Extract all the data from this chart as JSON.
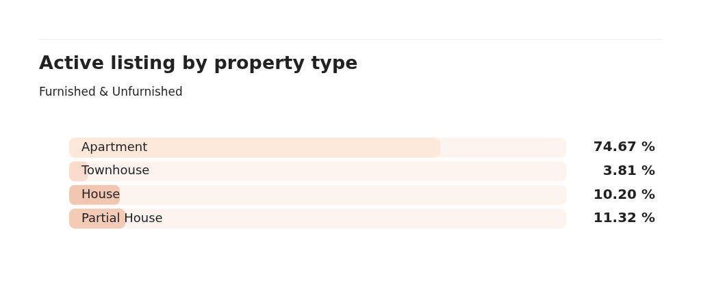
{
  "chart_data": {
    "type": "bar",
    "orientation": "horizontal",
    "title": "Active listing by property type",
    "subtitle": "Furnished & Unfurnished",
    "categories": [
      "Apartment",
      "Townhouse",
      "House",
      "Partial House"
    ],
    "values": [
      74.67,
      3.81,
      10.2,
      11.32
    ],
    "colors": [
      "#fde8dc",
      "#fbdccc",
      "#f2c7b2",
      "#f3cbb7"
    ],
    "value_labels": [
      "74.67 %",
      "3.81 %",
      "10.20 %",
      "11.32 %"
    ],
    "xlim": [
      0,
      100
    ],
    "tick_labels": "y",
    "legend": false
  }
}
